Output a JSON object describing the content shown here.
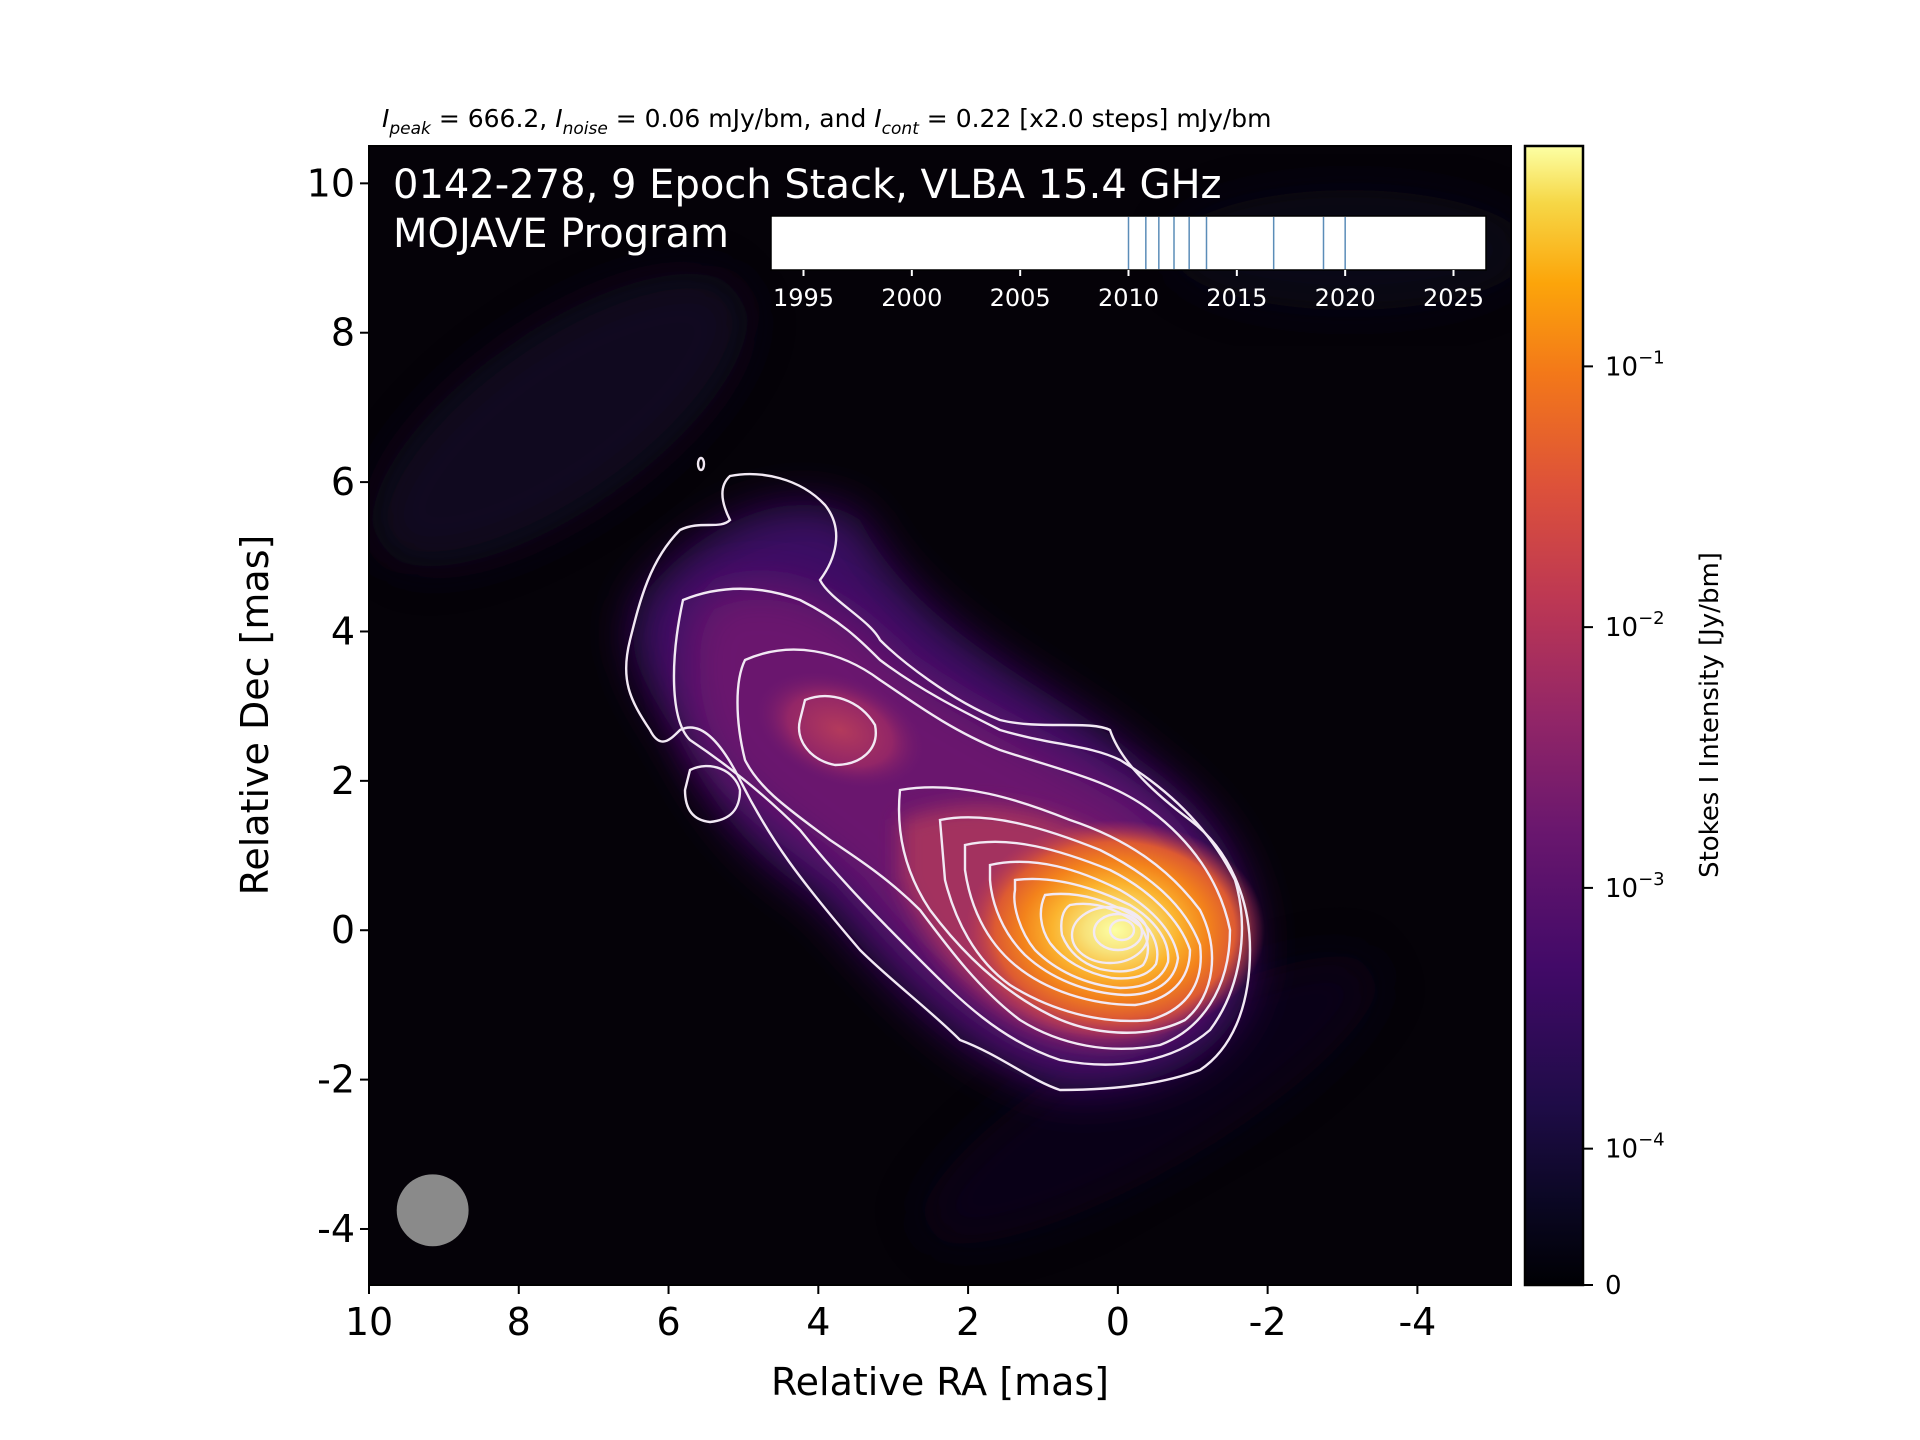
{
  "chart_data": {
    "type": "heatmap",
    "header": {
      "peak_label": "I",
      "peak_sub": "peak",
      "peak_text": " = 666.2, ",
      "noise_label": "I",
      "noise_sub": "noise",
      "noise_text": " = 0.06 mJy/bm, and ",
      "cont_label": "I",
      "cont_sub": "cont",
      "cont_text": " = 0.22 [x2.0 steps] mJy/bm"
    },
    "title_line1": "0142-278, 9 Epoch Stack, VLBA 15.4 GHz",
    "title_line2": "MOJAVE Program",
    "xlabel": "Relative RA [mas]",
    "ylabel": "Relative Dec [mas]",
    "xlim": [
      10,
      -5.25
    ],
    "ylim": [
      -4.75,
      10.5
    ],
    "xticks": [
      10,
      8,
      6,
      4,
      2,
      0,
      -2,
      -4
    ],
    "xtick_labels": [
      "10",
      "8",
      "6",
      "4",
      "2",
      "0",
      "-2",
      "-4"
    ],
    "yticks": [
      10,
      8,
      6,
      4,
      2,
      0,
      -2,
      -4
    ],
    "ytick_labels": [
      "10",
      "8",
      "6",
      "4",
      "2",
      "0",
      "-2",
      "-4"
    ],
    "colormap": "inferno",
    "contour_color": "#f2e9f4",
    "beam": {
      "x": 9.15,
      "y": -3.75,
      "radius": 0.48,
      "color": "#8a8a8a"
    },
    "peak_position": {
      "x": 0,
      "y": 0
    },
    "colorbar": {
      "label": "Stokes I Intensity [Jy/bm]",
      "scale": "log",
      "ticks": [
        {
          "base": "10",
          "exp": "−1",
          "value": 0.1
        },
        {
          "base": "10",
          "exp": "−2",
          "value": 0.01
        },
        {
          "base": "10",
          "exp": "−3",
          "value": 0.001
        },
        {
          "base": "10",
          "exp": "−4",
          "value": 0.0001
        },
        {
          "base": "0",
          "exp": "",
          "value": 0
        }
      ]
    },
    "epochs_inset": {
      "xlim": [
        1993.5,
        2026.5
      ],
      "xticks": [
        1995,
        2000,
        2005,
        2010,
        2015,
        2020,
        2025
      ],
      "xtick_labels": [
        "1995",
        "2000",
        "2005",
        "2010",
        "2015",
        "2020",
        "2025"
      ],
      "epochs": [
        2010.0,
        2010.8,
        2011.4,
        2012.1,
        2012.8,
        2013.6,
        2016.7,
        2019.0,
        2020.0
      ],
      "line_color": "#5b8db8"
    }
  }
}
